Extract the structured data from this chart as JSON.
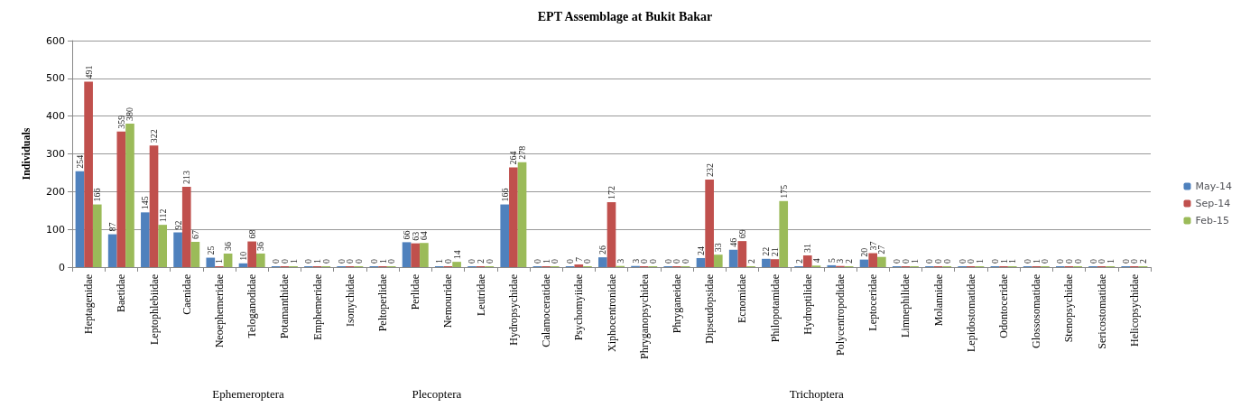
{
  "chart_data": {
    "type": "bar",
    "title": "EPT Assemblage at Bukit Bakar",
    "ylabel": "Individuals",
    "categories": [
      "Heptagenidae",
      "Baetidae",
      "Leptophlebiidae",
      "Caenidae",
      "Neoephemeridae",
      "Teloganodidae",
      "Potamanthidae",
      "Emphemeridae",
      "Isonychidae",
      "Peltoperlidae",
      "Perlidae",
      "Nemouridae",
      "Leutridae",
      "Hydropsychidae",
      "Calamoceratidae",
      "Psychomyiidae",
      "Xiphocentronidae",
      "Phryganopsychidea",
      "Phryganeidae",
      "Dipseudopsidae",
      "Ecnomidae",
      "Philopotamidae",
      "Hydroptilidae",
      "Polycentropodidae",
      "Leptoceridae",
      "Limnephilidae",
      "Molannidae",
      "Lepidostomatidae",
      "Odontoceridae",
      "Glossosomatidae",
      "Stenopsychidae",
      "Sericostomatidae",
      "Helicopsychidae"
    ],
    "series": [
      {
        "name": "May-14",
        "color": "#4f81bd",
        "values": [
          254,
          87,
          145,
          92,
          25,
          10,
          0,
          0,
          0,
          0,
          66,
          1,
          0,
          166,
          0,
          0,
          26,
          3,
          0,
          24,
          46,
          22,
          2,
          5,
          20,
          0,
          0,
          0,
          0,
          0,
          0,
          0,
          0
        ]
      },
      {
        "name": "Sep-14",
        "color": "#c0504d",
        "values": [
          491,
          359,
          322,
          213,
          1,
          68,
          0,
          1,
          0,
          1,
          63,
          0,
          2,
          264,
          1,
          7,
          172,
          0,
          0,
          232,
          69,
          21,
          31,
          3,
          37,
          0,
          0,
          0,
          1,
          1,
          0,
          0,
          0
        ]
      },
      {
        "name": "Feb-15",
        "color": "#9bbb59",
        "values": [
          166,
          380,
          112,
          67,
          36,
          36,
          1,
          0,
          0,
          0,
          64,
          14,
          0,
          278,
          0,
          0,
          3,
          0,
          0,
          33,
          2,
          175,
          4,
          2,
          27,
          1,
          0,
          1,
          1,
          0,
          0,
          1,
          2
        ]
      }
    ],
    "ylim": [
      0,
      600
    ],
    "yticks": [
      0,
      100,
      200,
      300,
      400,
      500,
      600
    ],
    "grid": "y",
    "legend": "right",
    "data_labels": true,
    "annotations": [
      "Ephemeroptera",
      "Plecoptera",
      "Trichoptera"
    ]
  }
}
